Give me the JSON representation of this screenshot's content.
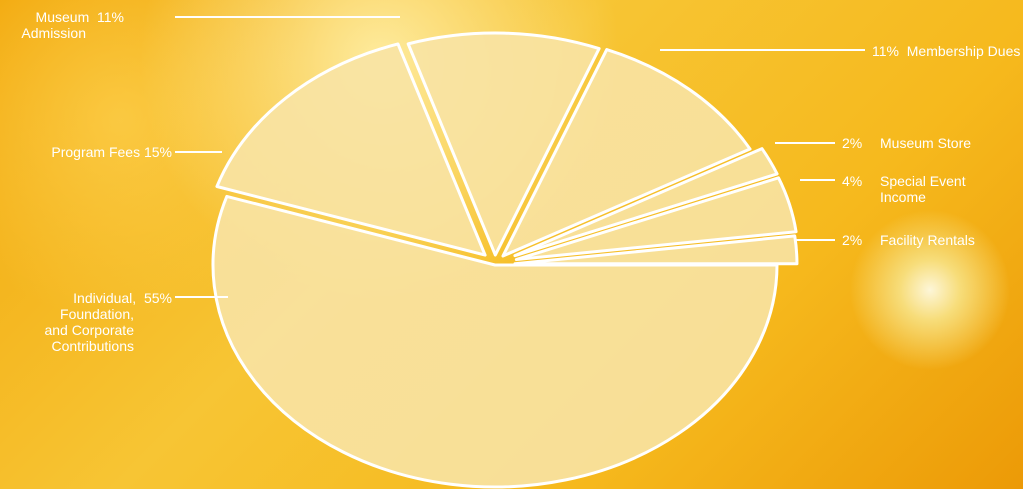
{
  "chart_data": {
    "type": "pie",
    "slices": [
      {
        "label": "Individual, Foundation, and Corporate Contributions",
        "label_lines": [
          "Individual,",
          "Foundation,",
          "and Corporate",
          "Contributions"
        ],
        "value": 55,
        "value_label": "55%"
      },
      {
        "label": "Program Fees",
        "label_lines": [
          "Program Fees"
        ],
        "value": 15,
        "value_label": "15%"
      },
      {
        "label": "Museum Admission",
        "label_lines": [
          "Museum",
          "Admission"
        ],
        "value": 11,
        "value_label": "11%"
      },
      {
        "label": "Membership Dues",
        "label_lines": [
          "Membership Dues"
        ],
        "value": 11,
        "value_label": "11%"
      },
      {
        "label": "Museum Store",
        "label_lines": [
          "Museum Store"
        ],
        "value": 2,
        "value_label": "2%"
      },
      {
        "label": "Special Event Income",
        "label_lines": [
          "Special Event",
          "Income"
        ],
        "value": 4,
        "value_label": "4%"
      },
      {
        "label": "Facility Rentals",
        "label_lines": [
          "Facility Rentals"
        ],
        "value": 2,
        "value_label": "2%"
      }
    ]
  },
  "colors": {
    "slice_fill": "#f8e3a4",
    "slice_edge": "#ffffff",
    "leader_line": "#ffffff"
  }
}
